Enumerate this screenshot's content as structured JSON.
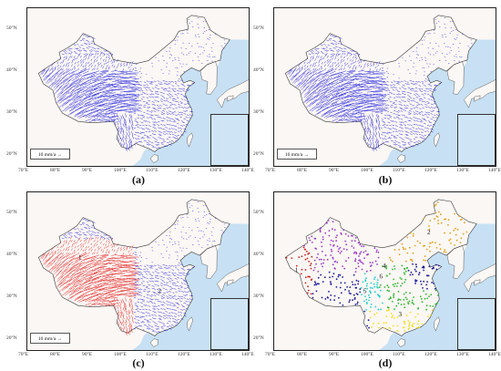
{
  "axes": {
    "lat_labels": [
      "50°N",
      "40°N",
      "30°N",
      "20°N"
    ],
    "lon_labels": [
      "70°E",
      "80°E",
      "90°E",
      "100°E",
      "110°E",
      "120°E",
      "130°E",
      "140°E"
    ]
  },
  "colors": {
    "ocean": "#c7e0f3",
    "land": "#fbf7f4",
    "border": "#3a3a3a",
    "vector_blue": "#1a1adc",
    "vector_red": "#e01515",
    "cluster_purple": "#9b3cc9",
    "cluster_orange": "#e0a21a",
    "cluster_green": "#2fb52f",
    "cluster_cyan": "#1fd0d0",
    "cluster_yellow": "#f0e020",
    "cluster_red": "#d42020",
    "cluster_navy": "#1a1a9a"
  },
  "panels": [
    {
      "id": "a",
      "caption": "(a)",
      "legend": "10 mm/a  →"
    },
    {
      "id": "b",
      "caption": "(b)",
      "legend": "10 mm/a  →"
    },
    {
      "id": "c",
      "caption": "(c)",
      "legend": "10 mm/a  →",
      "region_labels": [
        "1",
        "2"
      ]
    },
    {
      "id": "d",
      "caption": "(d)",
      "region_labels": [
        "1",
        "2",
        "3",
        "4",
        "5",
        "6"
      ]
    }
  ]
}
